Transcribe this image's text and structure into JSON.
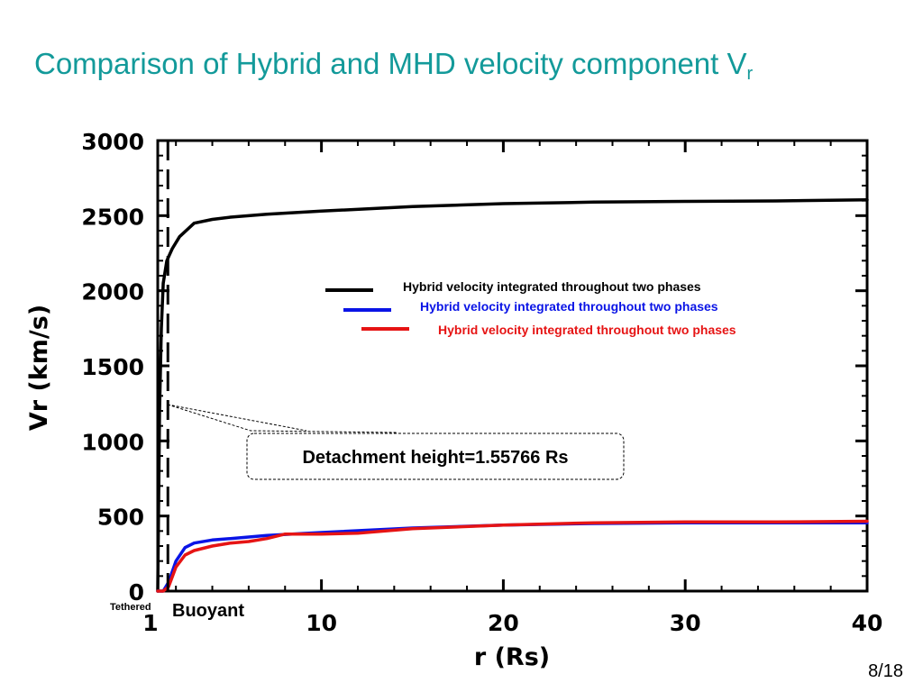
{
  "slide": {
    "title": "Comparison of Hybrid and MHD velocity component  V",
    "title_subscript": "r",
    "page_number": "8/18"
  },
  "chart_data": {
    "type": "line",
    "xlabel": "r  (Rs)",
    "ylabel": "Vr  (km/s)",
    "xlim": [
      1,
      40
    ],
    "ylim": [
      0,
      3000
    ],
    "x_ticks": [
      "1",
      "10",
      "20",
      "30",
      "40"
    ],
    "x_tick_values": [
      1,
      10,
      20,
      30,
      40
    ],
    "y_ticks": [
      "0",
      "500",
      "1000",
      "1500",
      "2000",
      "2500",
      "3000"
    ],
    "y_tick_values": [
      0,
      500,
      1000,
      1500,
      2000,
      2500,
      3000
    ],
    "series": [
      {
        "name": "Hybrid velocity integrated throughout two phases",
        "color": "#000000",
        "x": [
          1.0,
          1.05,
          1.1,
          1.2,
          1.3,
          1.5,
          1.8,
          2.2,
          3,
          4,
          5,
          7,
          10,
          15,
          20,
          25,
          30,
          35,
          40
        ],
        "y": [
          0,
          600,
          1200,
          1750,
          2050,
          2200,
          2280,
          2360,
          2450,
          2475,
          2490,
          2510,
          2530,
          2560,
          2580,
          2590,
          2595,
          2598,
          2605
        ]
      },
      {
        "name": "Hybrid velocity integrated throughout two phases",
        "color": "#0a14e6",
        "x": [
          1.0,
          1.3,
          1.6,
          2.0,
          2.5,
          3,
          4,
          5,
          7,
          10,
          15,
          20,
          25,
          30,
          35,
          40
        ],
        "y": [
          0,
          0,
          60,
          200,
          290,
          320,
          340,
          350,
          370,
          390,
          420,
          440,
          450,
          455,
          455,
          455
        ]
      },
      {
        "name": "Hybrid velocity integrated throughout two phases",
        "color": "#e61414",
        "x": [
          1.0,
          1.3,
          1.6,
          2.0,
          2.5,
          3,
          4,
          5,
          6,
          7,
          8,
          10,
          12,
          15,
          20,
          25,
          30,
          35,
          40
        ],
        "y": [
          0,
          0,
          30,
          160,
          240,
          270,
          300,
          320,
          330,
          350,
          380,
          380,
          385,
          415,
          440,
          455,
          460,
          460,
          465
        ]
      }
    ],
    "dashed_line_x": 1.55766,
    "annotations": {
      "detachment": "Detachment height=1.55766 Rs",
      "tethered": "Tethered",
      "buoyant": "Buoyant"
    },
    "grid": false,
    "legend_position": "upper-right"
  }
}
